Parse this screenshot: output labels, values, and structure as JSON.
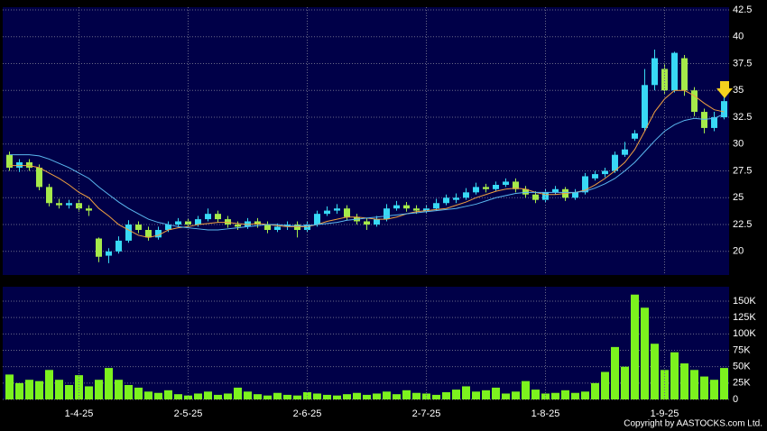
{
  "chart_data": [
    {
      "type": "candlestick",
      "up_color": "#38d9f5",
      "down_color": "#a6ea4a",
      "open": [
        29,
        27.8,
        28.3,
        27.8,
        26.0,
        24.5,
        24.3,
        24.5,
        24.0,
        21.2,
        19.6,
        20.0,
        21.0,
        22.5,
        22.0,
        21.3,
        22.0,
        22.5,
        22.8,
        22.5,
        23.0,
        23.5,
        23.0,
        22.5,
        22.3,
        22.8,
        22.5,
        22.0,
        22.3,
        22.5,
        22.0,
        22.5,
        23.5,
        23.8,
        24.0,
        23.2,
        22.8,
        22.5,
        23.0,
        24.0,
        24.3,
        24.0,
        23.8,
        24.0,
        24.5,
        24.8,
        25.0,
        25.5,
        26.0,
        25.8,
        26.2,
        26.5,
        25.8,
        25.3,
        24.8,
        25.5,
        25.8,
        25.0,
        25.5,
        26.8,
        27.2,
        27.5,
        29.0,
        30.5,
        31.5,
        35.5,
        37.0,
        35.0,
        38.0,
        35.0,
        33.0,
        31.5,
        32.5
      ],
      "high": [
        29.3,
        28.6,
        28.6,
        28.1,
        26.3,
        24.9,
        24.8,
        24.8,
        24.3,
        21.3,
        20.3,
        21.4,
        22.9,
        22.8,
        22.3,
        22.3,
        22.8,
        23.1,
        23.1,
        23.3,
        24.0,
        23.8,
        23.3,
        22.8,
        23.1,
        23.1,
        22.8,
        22.6,
        22.8,
        22.8,
        22.8,
        23.8,
        24.2,
        24.4,
        24.3,
        23.5,
        23.1,
        23.3,
        24.4,
        24.7,
        24.6,
        24.3,
        24.3,
        24.9,
        25.3,
        25.4,
        25.9,
        26.4,
        26.3,
        26.5,
        26.8,
        26.8,
        26.1,
        25.6,
        25.8,
        26.1,
        26.0,
        25.8,
        27.3,
        27.5,
        27.8,
        29.3,
        30.2,
        31.3,
        37.0,
        38.8,
        37.5,
        38.6,
        38.3,
        35.3,
        33.3,
        33.0,
        35.8
      ],
      "low": [
        27.5,
        27.4,
        27.5,
        25.7,
        24.2,
        24.0,
        24.0,
        23.7,
        23.3,
        19.0,
        18.9,
        19.8,
        20.8,
        21.7,
        21.0,
        21.1,
        21.8,
        22.3,
        22.2,
        22.3,
        22.8,
        22.7,
        22.2,
        22.0,
        22.1,
        22.2,
        21.7,
        21.8,
        22.0,
        21.3,
        21.8,
        22.3,
        23.3,
        23.5,
        22.9,
        22.5,
        22.0,
        22.3,
        22.8,
        23.8,
        23.7,
        23.5,
        23.5,
        23.8,
        24.3,
        24.5,
        24.8,
        25.3,
        25.5,
        25.6,
        26.0,
        25.5,
        25.0,
        24.5,
        24.6,
        25.3,
        24.7,
        24.8,
        25.3,
        26.6,
        26.9,
        27.3,
        28.8,
        30.3,
        31.2,
        35.0,
        34.7,
        34.8,
        34.5,
        32.6,
        31.0,
        31.2,
        32.3
      ],
      "close": [
        27.8,
        28.3,
        27.8,
        26.0,
        24.5,
        24.3,
        24.5,
        24.0,
        23.8,
        19.5,
        20.0,
        21.0,
        22.5,
        22.0,
        21.3,
        22.0,
        22.5,
        22.8,
        22.5,
        23.0,
        23.5,
        23.0,
        22.5,
        22.3,
        22.8,
        22.5,
        22.0,
        22.3,
        22.5,
        22.0,
        22.5,
        23.5,
        23.8,
        24.0,
        23.2,
        22.8,
        22.5,
        23.0,
        24.0,
        24.3,
        24.0,
        23.8,
        24.0,
        24.5,
        25.0,
        25.0,
        25.5,
        26.0,
        25.8,
        26.2,
        26.5,
        25.8,
        25.3,
        24.8,
        25.5,
        25.8,
        25.0,
        25.5,
        27.0,
        27.2,
        27.5,
        29.0,
        29.5,
        31.0,
        35.5,
        38.0,
        35.0,
        38.5,
        35.0,
        33.0,
        31.5,
        32.5,
        34.0
      ],
      "series": [
        {
          "color": "#f0a040",
          "values": [
            28,
            28,
            28,
            27.8,
            27.3,
            26.8,
            26.2,
            25.5,
            25,
            24,
            23.3,
            22.5,
            22,
            21.5,
            21.3,
            21.5,
            22,
            22.2,
            22.3,
            22.5,
            22.6,
            22.7,
            22.7,
            22.6,
            22.5,
            22.6,
            22.5,
            22.4,
            22.3,
            22.3,
            22.3,
            22.5,
            22.8,
            23,
            23.2,
            23.2,
            23.1,
            23,
            23,
            23.2,
            23.5,
            23.7,
            23.8,
            23.9,
            24,
            24.3,
            24.6,
            25,
            25.3,
            25.6,
            25.8,
            25.9,
            25.8,
            25.5,
            25.3,
            25.3,
            25.4,
            25.5,
            25.7,
            26.2,
            26.8,
            27.5,
            28.3,
            29.5,
            31.2,
            33,
            34.2,
            35,
            35,
            34.5,
            33.8,
            33.2,
            33
          ]
        },
        {
          "color": "#5bb8f0",
          "values": [
            29,
            29,
            29,
            28.9,
            28.6,
            28.2,
            27.8,
            27.3,
            26.8,
            26,
            25.3,
            24.6,
            24,
            23.5,
            23,
            22.7,
            22.5,
            22.3,
            22.2,
            22.1,
            22,
            22,
            22.1,
            22.2,
            22.3,
            22.4,
            22.5,
            22.5,
            22.4,
            22.4,
            22.4,
            22.5,
            22.6,
            22.7,
            22.9,
            23,
            23.1,
            23.2,
            23.3,
            23.4,
            23.5,
            23.6,
            23.7,
            23.8,
            23.9,
            24,
            24.2,
            24.4,
            24.7,
            25,
            25.2,
            25.4,
            25.5,
            25.5,
            25.5,
            25.5,
            25.5,
            25.5,
            25.6,
            25.9,
            26.3,
            26.8,
            27.5,
            28.3,
            29.3,
            30.3,
            31.2,
            31.8,
            32.2,
            32.4,
            32.3,
            32.4,
            32.8
          ]
        }
      ],
      "ylim": [
        17.8,
        42.75
      ],
      "yticks": [
        20,
        22.5,
        25,
        27.5,
        30,
        32.5,
        35,
        37.5,
        40,
        42.5
      ],
      "grid": true
    },
    {
      "type": "bar",
      "color": "#7cf21e",
      "categories": [
        null,
        null,
        null,
        null,
        null,
        null,
        null,
        "1-4-25",
        null,
        null,
        null,
        null,
        null,
        null,
        null,
        null,
        null,
        null,
        "2-5-25",
        null,
        null,
        null,
        null,
        null,
        null,
        null,
        null,
        null,
        null,
        null,
        "2-6-25",
        null,
        null,
        null,
        null,
        null,
        null,
        null,
        null,
        null,
        null,
        null,
        "2-7-25",
        null,
        null,
        null,
        null,
        null,
        null,
        null,
        null,
        null,
        null,
        null,
        "1-8-25",
        null,
        null,
        null,
        null,
        null,
        null,
        null,
        null,
        null,
        null,
        null,
        "1-9-25",
        null,
        null,
        null,
        null,
        null,
        null
      ],
      "values": [
        38000,
        25000,
        30000,
        28000,
        45000,
        30000,
        22000,
        37000,
        20000,
        30000,
        48000,
        30000,
        22000,
        18000,
        12000,
        10000,
        14000,
        8000,
        6000,
        9000,
        12000,
        7000,
        9000,
        18000,
        12000,
        8000,
        6000,
        10000,
        7000,
        6000,
        11000,
        9000,
        7000,
        6000,
        8000,
        10000,
        7000,
        9000,
        12000,
        8000,
        14000,
        10000,
        9000,
        7000,
        11000,
        15000,
        20000,
        12000,
        14000,
        18000,
        9000,
        12000,
        28000,
        15000,
        9000,
        10000,
        14000,
        10000,
        12000,
        25000,
        42000,
        80000,
        50000,
        160000,
        140000,
        85000,
        45000,
        72000,
        55000,
        45000,
        35000,
        30000,
        48000
      ],
      "ylim": [
        0,
        172000
      ],
      "yticks": [
        0,
        {
          "value": 25000,
          "label": "25K"
        },
        {
          "value": 50000,
          "label": "50K"
        },
        {
          "value": 75000,
          "label": "75K"
        },
        {
          "value": 100000,
          "label": "100K"
        },
        {
          "value": 125000,
          "label": "125K"
        },
        {
          "value": 150000,
          "label": "150K"
        }
      ],
      "grid": true
    }
  ],
  "footer": "Copyright by AASTOCKS.com Ltd."
}
